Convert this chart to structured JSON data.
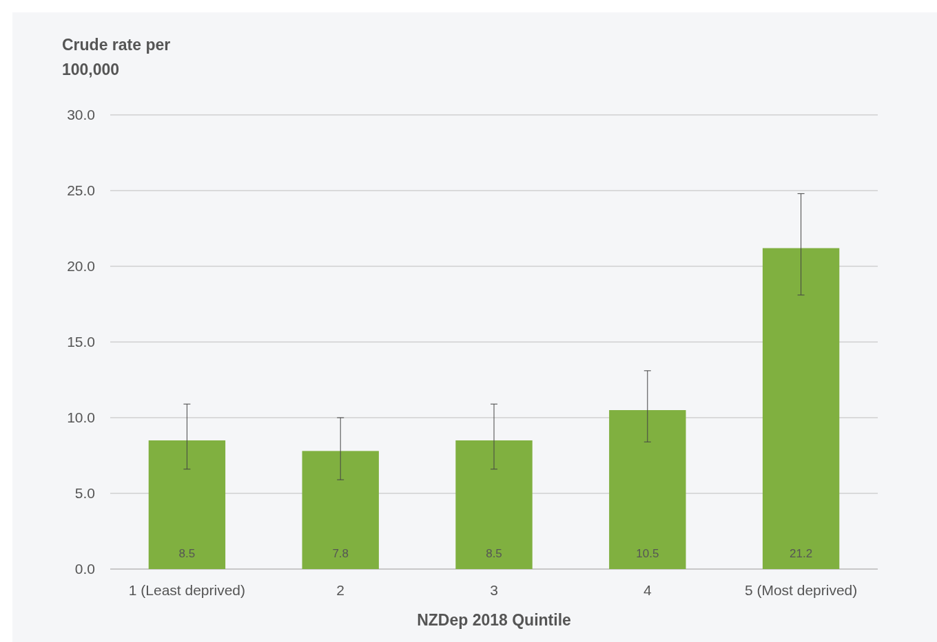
{
  "chart_data": {
    "type": "bar",
    "ylabel": "Crude rate per 100,000",
    "xlabel": "NZDep 2018 Quintile",
    "categories": [
      "1 (Least deprived)",
      "2",
      "3",
      "4",
      "5 (Most deprived)"
    ],
    "values": [
      8.5,
      7.8,
      8.5,
      10.5,
      21.2
    ],
    "errors": [
      [
        6.6,
        10.9
      ],
      [
        5.9,
        10.0
      ],
      [
        6.6,
        10.9
      ],
      [
        8.4,
        13.1
      ],
      [
        18.1,
        24.8
      ]
    ],
    "color": "#80b040",
    "ylim": [
      0,
      30
    ],
    "yticks": [
      {
        "value": 0,
        "label": "0.0"
      },
      {
        "value": 5,
        "label": "5.0"
      },
      {
        "value": 10,
        "label": "10.0"
      },
      {
        "value": 15,
        "label": "15.0"
      },
      {
        "value": 20,
        "label": "20.0"
      },
      {
        "value": 25,
        "label": "25.0"
      },
      {
        "value": 30,
        "label": "30.0"
      }
    ],
    "grid": "y",
    "data_labels": true
  }
}
